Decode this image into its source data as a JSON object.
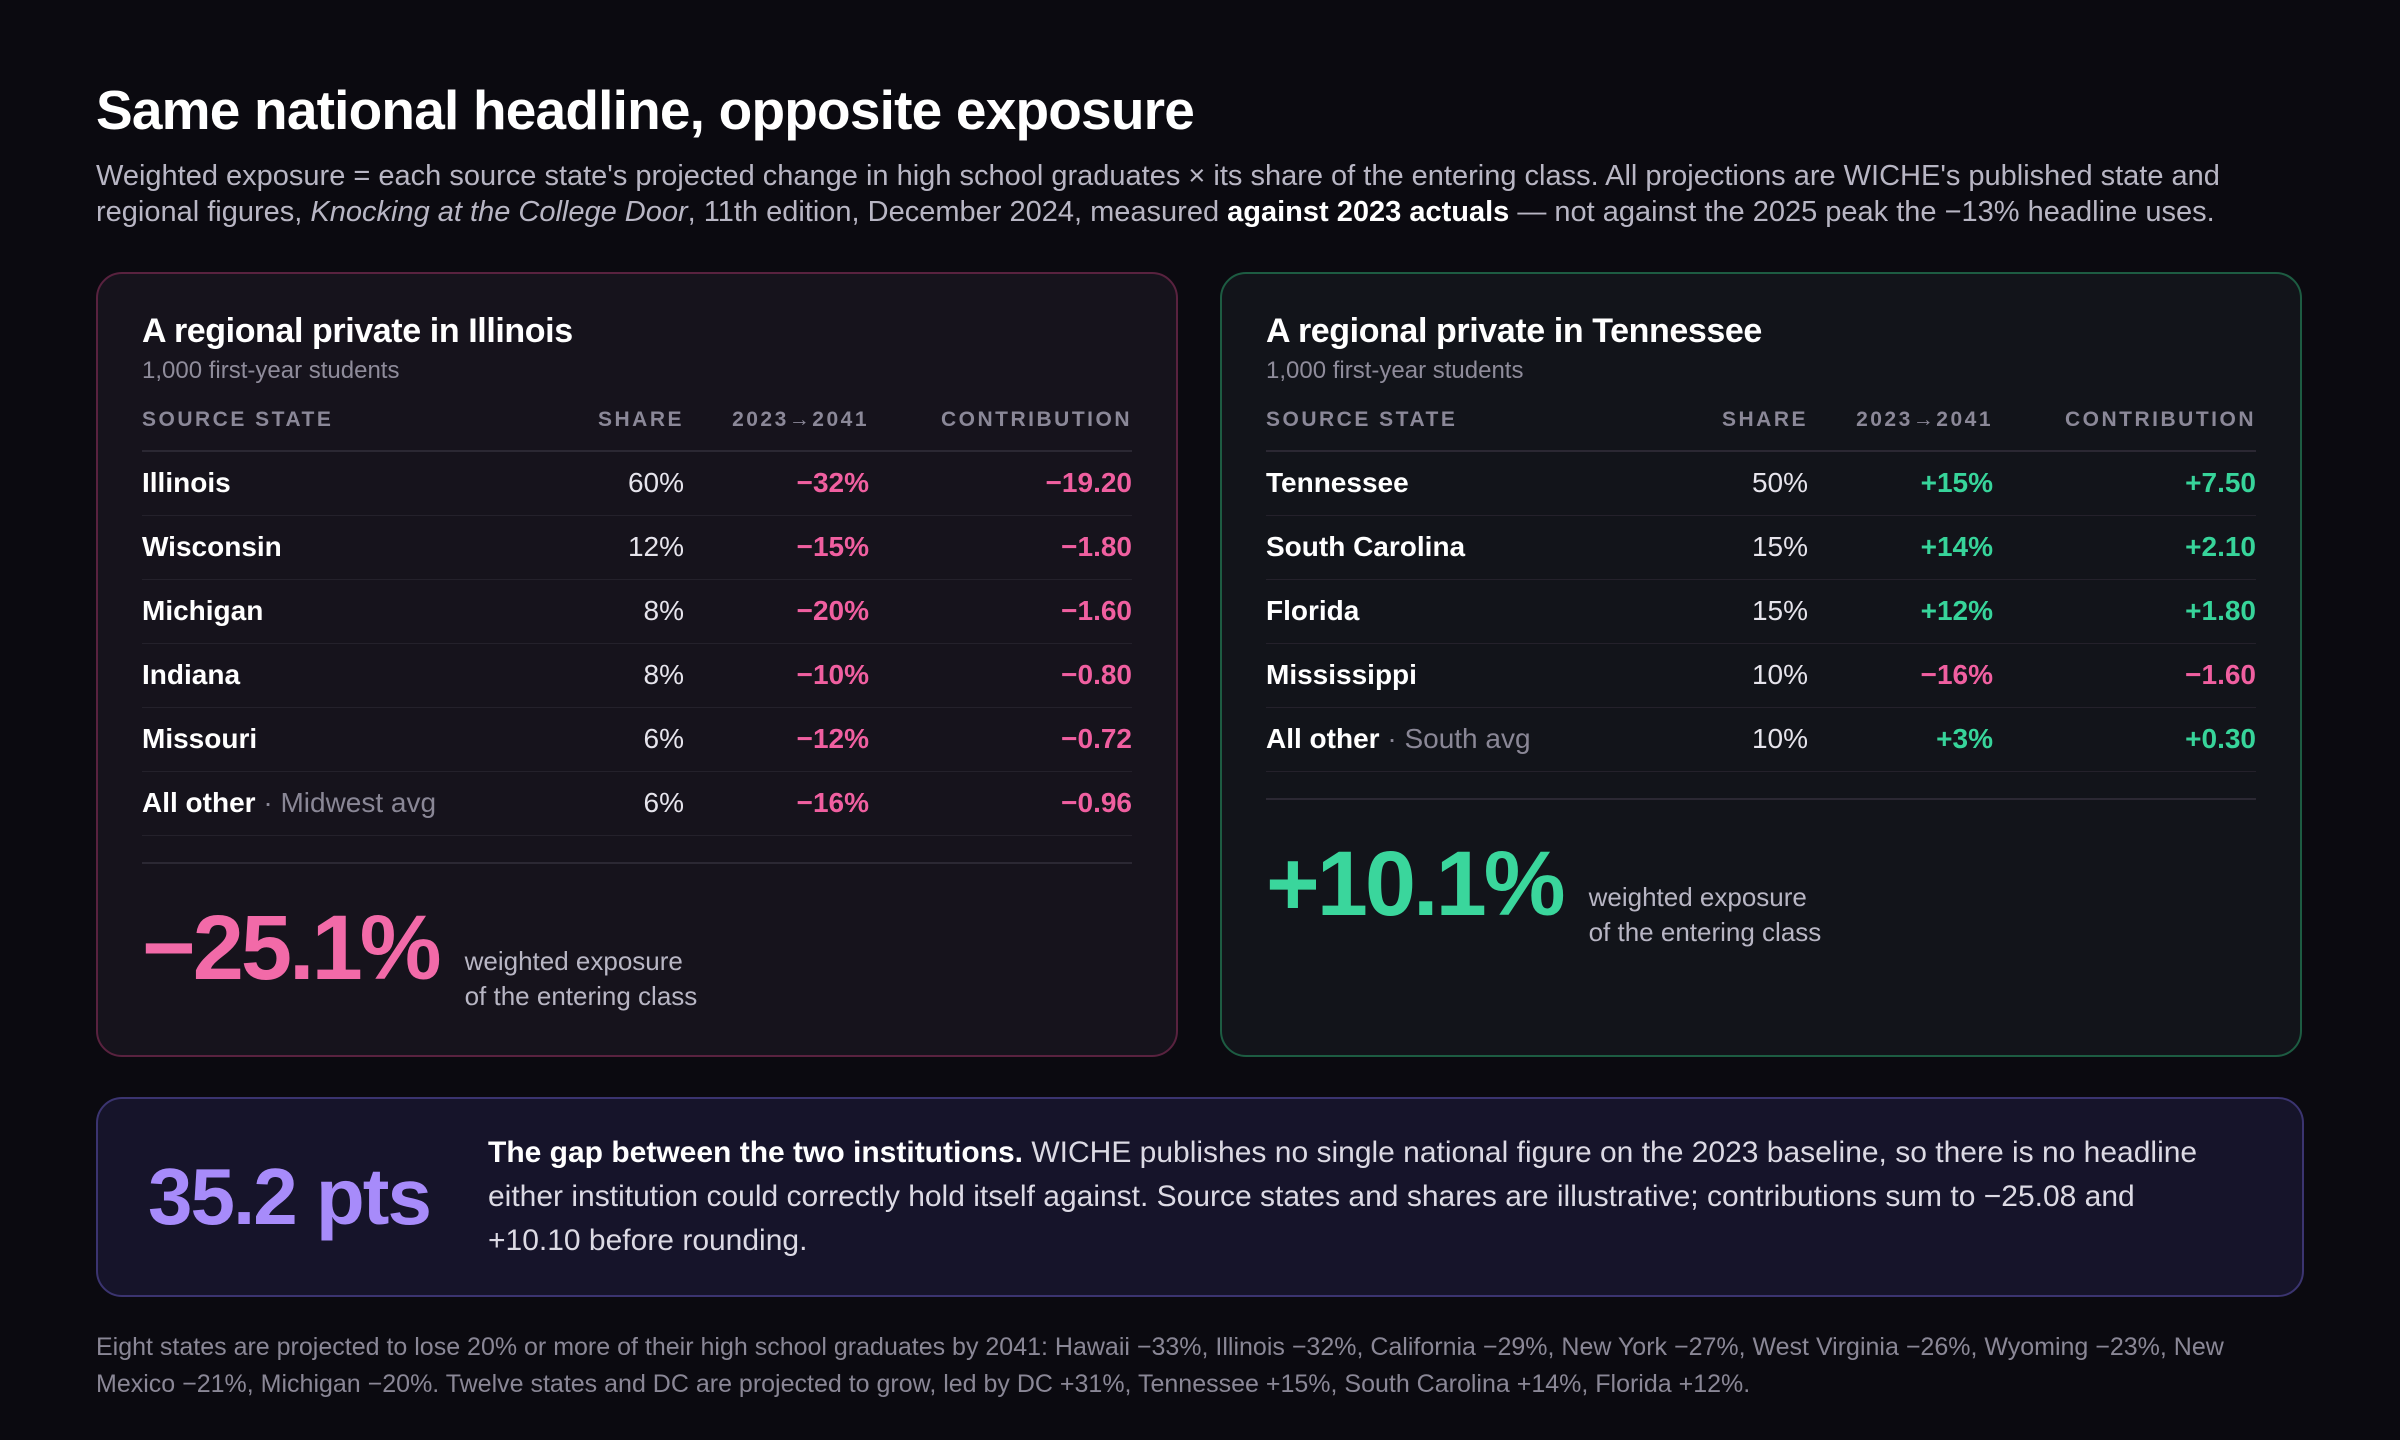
{
  "header": {
    "title": "Same national headline, opposite exposure",
    "subtitle_part1": "Weighted exposure = each source state's projected change in high school graduates × its share of the entering class. All projections are WICHE's published state and regional figures, ",
    "subtitle_italic": "Knocking at the College Door",
    "subtitle_part2": ", 11th edition, December 2024, measured ",
    "subtitle_bold": "against 2023 actuals",
    "subtitle_part3": " — not against the 2025 peak the −13% headline uses."
  },
  "columns": {
    "state": "SOURCE STATE",
    "share": "SHARE",
    "change": "2023→2041",
    "contribution": "CONTRIBUTION"
  },
  "illinois": {
    "title": "A regional private in Illinois",
    "subtitle": "1,000 first-year students",
    "rows": [
      {
        "state": "Illinois",
        "note": "",
        "share": "60%",
        "change": "−32%",
        "contribution": "−19.20"
      },
      {
        "state": "Wisconsin",
        "note": "",
        "share": "12%",
        "change": "−15%",
        "contribution": "−1.80"
      },
      {
        "state": "Michigan",
        "note": "",
        "share": "8%",
        "change": "−20%",
        "contribution": "−1.60"
      },
      {
        "state": "Indiana",
        "note": "",
        "share": "8%",
        "change": "−10%",
        "contribution": "−0.80"
      },
      {
        "state": "Missouri",
        "note": "",
        "share": "6%",
        "change": "−12%",
        "contribution": "−0.72"
      },
      {
        "state": "All other",
        "note": " · Midwest avg",
        "share": "6%",
        "change": "−16%",
        "contribution": "−0.96"
      }
    ],
    "total": "−25.1%",
    "total_label_1": "weighted exposure",
    "total_label_2": "of the entering class"
  },
  "tennessee": {
    "title": "A regional private in Tennessee",
    "subtitle": "1,000 first-year students",
    "rows": [
      {
        "state": "Tennessee",
        "note": "",
        "share": "50%",
        "change": "+15%",
        "contribution": "+7.50"
      },
      {
        "state": "South Carolina",
        "note": "",
        "share": "15%",
        "change": "+14%",
        "contribution": "+2.10"
      },
      {
        "state": "Florida",
        "note": "",
        "share": "15%",
        "change": "+12%",
        "contribution": "+1.80"
      },
      {
        "state": "Mississippi",
        "note": "",
        "share": "10%",
        "change": "−16%",
        "contribution": "−1.60"
      },
      {
        "state": "All other",
        "note": " · South avg",
        "share": "10%",
        "change": "+3%",
        "contribution": "+0.30"
      }
    ],
    "total": "+10.1%",
    "total_label_1": "weighted exposure",
    "total_label_2": "of the entering class"
  },
  "gap": {
    "value": "35.2 pts",
    "lead": "The gap between the two institutions.",
    "body": " WICHE publishes no single national figure on the 2023 baseline, so there is no headline either institution could correctly hold itself against. Source states and shares are illustrative; contributions sum to −25.08 and +10.10 before rounding."
  },
  "footnote": "Eight states are projected to lose 20% or more of their high school graduates by 2041: Hawaii −33%, Illinois −32%, California −29%, New York −27%, West Virginia −26%, Wyoming −23%, New Mexico −21%, Michigan −20%. Twelve states and DC are projected to grow, led by DC +31%, Tennessee +15%, South Carolina +14%, Florida +12%.",
  "colors": {
    "negative": "#f05fa0",
    "positive": "#37d49a",
    "gap_accent": "#a78bfa",
    "background": "#0b0a10"
  }
}
